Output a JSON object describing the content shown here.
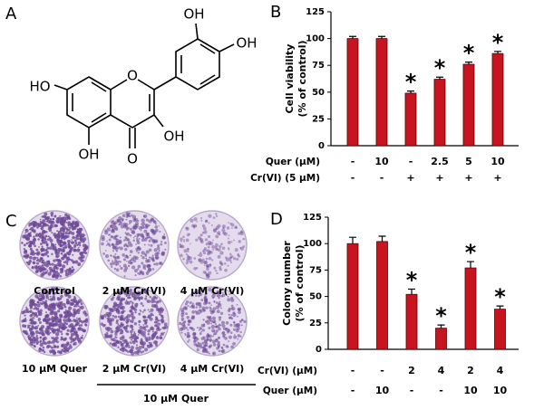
{
  "panel_labels": [
    "A",
    "B",
    "C",
    "D"
  ],
  "structure": {
    "labels": [
      "HO",
      "OH",
      "O",
      "O",
      "OH",
      "OH",
      "OH"
    ]
  },
  "plates": {
    "labels": [
      "Control",
      "2 μM Cr(VI)",
      "4 μM Cr(VI)",
      "10 μM Quer",
      "2 μM Cr(VI)",
      "4 μM Cr(VI)"
    ],
    "group_label": "10 μM Quer"
  },
  "chart_data": [
    {
      "type": "bar",
      "y_label": [
        "Cell viability",
        "(% of control)"
      ],
      "color": "#c8141e",
      "values": [
        100,
        100,
        49,
        62,
        76,
        86
      ],
      "errors": [
        2,
        2,
        2,
        2,
        2,
        2
      ],
      "markers": [
        null,
        null,
        "*",
        "*",
        "*",
        "*"
      ],
      "rows": [
        {
          "label": "Quer (μM)",
          "values": [
            "-",
            "10",
            "-",
            "2.5",
            "5",
            "10"
          ]
        },
        {
          "label": "Cr(VI) (5 μM)",
          "values": [
            "-",
            "-",
            "+",
            "+",
            "+",
            "+"
          ]
        }
      ],
      "ylim": [
        0,
        125
      ],
      "yticks": [
        0,
        25,
        50,
        75,
        100,
        125
      ]
    },
    {
      "type": "bar",
      "y_label": [
        "Colony number",
        "(% of control)"
      ],
      "color": "#c8141e",
      "values": [
        100,
        102,
        52,
        20,
        77,
        38
      ],
      "errors": [
        6,
        5,
        5,
        3,
        6,
        3
      ],
      "markers": [
        null,
        null,
        "*",
        "*",
        "*",
        "*"
      ],
      "rows": [
        {
          "label": "Cr(VI) (μM)",
          "values": [
            "-",
            "-",
            "2",
            "4",
            "2",
            "4"
          ]
        },
        {
          "label": "Quer (μM)",
          "values": [
            "-",
            "10",
            "-",
            "-",
            "10",
            "10"
          ]
        }
      ],
      "ylim": [
        0,
        125
      ],
      "yticks": [
        0,
        25,
        50,
        75,
        100,
        125
      ]
    }
  ]
}
